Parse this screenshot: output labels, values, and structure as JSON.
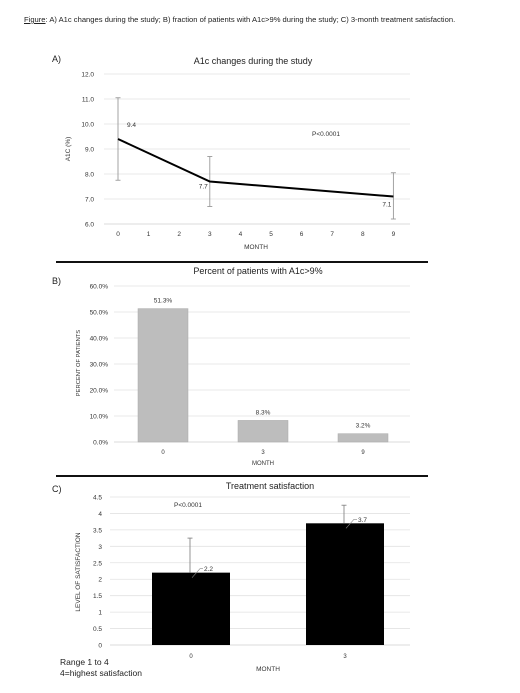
{
  "caption": {
    "label": "Figure",
    "text": ": A) A1c changes during the study; B) fraction of patients with A1c>9% during the study; C) 3-month treatment satisfaction."
  },
  "panel_letters": [
    "A)",
    "B)",
    "C)"
  ],
  "chart_data": [
    {
      "type": "line",
      "title": "A1c changes during the study",
      "xlabel": "MONTH",
      "ylabel": "A1C (%)",
      "ylim": [
        6.0,
        12.0
      ],
      "yticks": [
        "6.0",
        "7.0",
        "8.0",
        "9.0",
        "10.0",
        "11.0",
        "12.0"
      ],
      "xticks": [
        "0",
        "1",
        "2",
        "3",
        "4",
        "5",
        "6",
        "7",
        "8",
        "9"
      ],
      "grid": true,
      "points": [
        {
          "x": 0,
          "y": 9.4,
          "label": "9.4",
          "err_low": 7.75,
          "err_high": 11.05
        },
        {
          "x": 3,
          "y": 7.7,
          "label": "7.7",
          "err_low": 6.7,
          "err_high": 8.7
        },
        {
          "x": 9,
          "y": 7.1,
          "label": "7.1",
          "err_low": 6.2,
          "err_high": 8.05
        }
      ],
      "annotation": "P<0.0001",
      "line_color": "#000000",
      "errorbar_color": "#999999"
    },
    {
      "type": "bar",
      "title": "Percent of patients with A1c>9%",
      "xlabel": "MONTH",
      "ylabel": "PERCENT OF PATIENTS",
      "ylim": [
        0,
        60
      ],
      "yticks": [
        "0.0%",
        "10.0%",
        "20.0%",
        "30.0%",
        "40.0%",
        "50.0%",
        "60.0%"
      ],
      "categories": [
        "0",
        "3",
        "9"
      ],
      "values": [
        51.3,
        8.3,
        3.2
      ],
      "labels": [
        "51.3%",
        "8.3%",
        "3.2%"
      ],
      "grid": true,
      "bar_color": "#bdbdbd"
    },
    {
      "type": "bar",
      "title": "Treatment satisfaction",
      "xlabel": "MONTH",
      "ylabel": "LEVEL OF SATISFACTION",
      "ylim": [
        0,
        4.5
      ],
      "yticks": [
        "0",
        "0.5",
        "1",
        "1.5",
        "2",
        "2.5",
        "3",
        "3.5",
        "4",
        "4.5"
      ],
      "categories": [
        "0",
        "3"
      ],
      "values": [
        2.2,
        3.7
      ],
      "labels": [
        "2.2",
        "3.7"
      ],
      "errors_high": [
        3.25,
        4.25
      ],
      "annotation": "P<0.0001",
      "grid": true,
      "bar_color": "#000000",
      "errorbar_color": "#888888"
    }
  ],
  "notes": [
    "Range 1 to 4",
    "4=highest satisfaction"
  ]
}
